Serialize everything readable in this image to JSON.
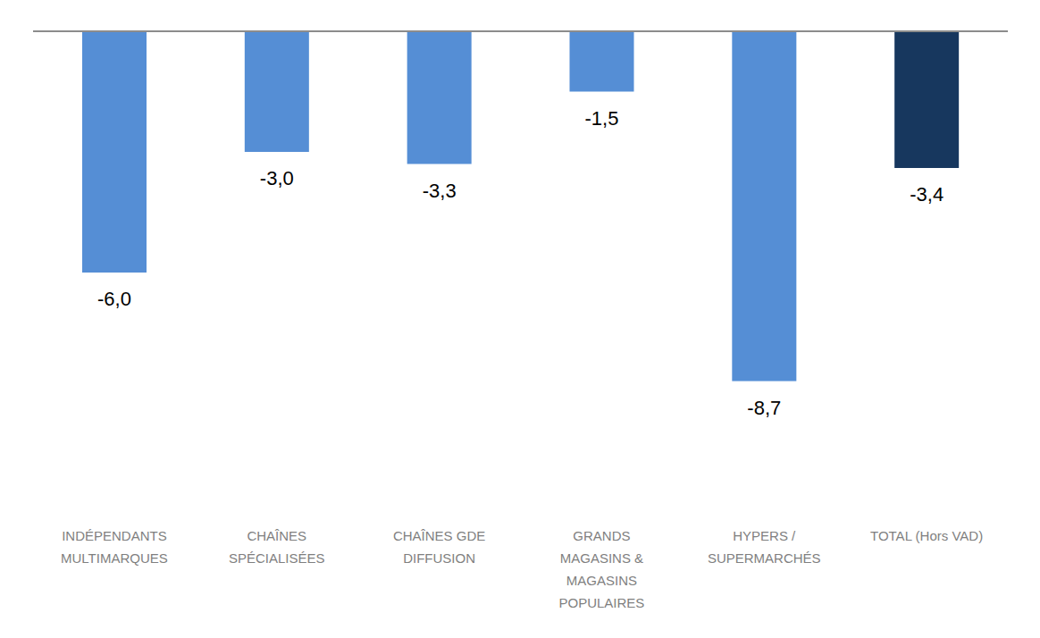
{
  "chart_data": {
    "type": "bar",
    "categories": [
      "INDÉPENDANTS MULTIMARQUES",
      "CHAÎNES SPÉCIALISÉES",
      "CHAÎNES GDE DIFFUSION",
      "GRANDS MAGASINS & MAGASINS POPULAIRES",
      "HYPERS / SUPERMARCHÉS",
      "TOTAL (Hors VAD)"
    ],
    "values": [
      -6.0,
      -3.0,
      -3.3,
      -1.5,
      -8.7,
      -3.4
    ],
    "value_labels": [
      "-6,0",
      "-3,0",
      "-3,3",
      "-1,5",
      "-8,7",
      "-3,4"
    ],
    "colors": [
      "#558ed5",
      "#558ed5",
      "#558ed5",
      "#558ed5",
      "#558ed5",
      "#17375e"
    ],
    "ylim": [
      -12,
      0
    ],
    "data_labels": true,
    "tick_labels": "x",
    "grid": false
  }
}
